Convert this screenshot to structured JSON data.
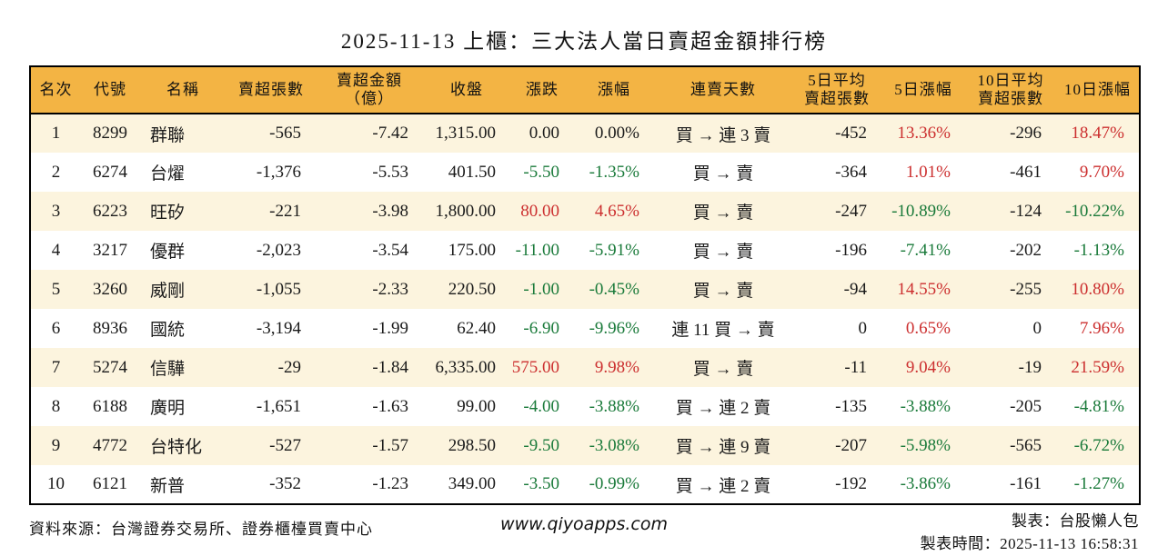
{
  "title": "2025-11-13 上櫃：三大法人當日賣超金額排行榜",
  "colors": {
    "up_red": "#CC2F2F",
    "down_green": "#1A7A3A",
    "flat_black": "#1A1A1A",
    "header_bg": "#F3B444",
    "alt_row_bg": "#FCF4DE",
    "border": "#000000"
  },
  "chart_data": {
    "type": "table",
    "title": "2025-11-13 上櫃：三大法人當日賣超金額排行榜",
    "columns": [
      {
        "key": "rank",
        "label": "名次",
        "align": "center",
        "colored": false
      },
      {
        "key": "code",
        "label": "代號",
        "align": "center",
        "colored": false
      },
      {
        "key": "name",
        "label": "名稱",
        "align": "left",
        "colored": false
      },
      {
        "key": "shares",
        "label": "賣超張數",
        "align": "right",
        "colored": false
      },
      {
        "key": "amount",
        "label": "賣超金額\n（億）",
        "align": "right",
        "colored": false
      },
      {
        "key": "close",
        "label": "收盤",
        "align": "right",
        "colored": false
      },
      {
        "key": "change",
        "label": "漲跌",
        "align": "right",
        "colored": true
      },
      {
        "key": "changePct",
        "label": "漲幅",
        "align": "right",
        "colored": true
      },
      {
        "key": "streak",
        "label": "連賣天數",
        "align": "center",
        "colored": false
      },
      {
        "key": "avg5",
        "label": "5日平均\n賣超張數",
        "align": "right",
        "colored": false
      },
      {
        "key": "pct5",
        "label": "5日漲幅",
        "align": "right",
        "colored": true
      },
      {
        "key": "avg10",
        "label": "10日平均\n賣超張數",
        "align": "right",
        "colored": false
      },
      {
        "key": "pct10",
        "label": "10日漲幅",
        "align": "right",
        "colored": true
      }
    ],
    "rows": [
      {
        "rank": "1",
        "code": "8299",
        "name": "群聯",
        "shares": "-565",
        "amount": "-7.42",
        "close": "1,315.00",
        "change": {
          "t": "0.00",
          "c": "flat"
        },
        "changePct": {
          "t": "0.00%",
          "c": "flat"
        },
        "streak": "買 → 連 3 賣",
        "avg5": "-452",
        "pct5": {
          "t": "13.36%",
          "c": "up"
        },
        "avg10": "-296",
        "pct10": {
          "t": "18.47%",
          "c": "up"
        }
      },
      {
        "rank": "2",
        "code": "6274",
        "name": "台燿",
        "shares": "-1,376",
        "amount": "-5.53",
        "close": "401.50",
        "change": {
          "t": "-5.50",
          "c": "down"
        },
        "changePct": {
          "t": "-1.35%",
          "c": "down"
        },
        "streak": "買 → 賣",
        "avg5": "-364",
        "pct5": {
          "t": "1.01%",
          "c": "up"
        },
        "avg10": "-461",
        "pct10": {
          "t": "9.70%",
          "c": "up"
        }
      },
      {
        "rank": "3",
        "code": "6223",
        "name": "旺矽",
        "shares": "-221",
        "amount": "-3.98",
        "close": "1,800.00",
        "change": {
          "t": "80.00",
          "c": "up"
        },
        "changePct": {
          "t": "4.65%",
          "c": "up"
        },
        "streak": "買 → 賣",
        "avg5": "-247",
        "pct5": {
          "t": "-10.89%",
          "c": "down"
        },
        "avg10": "-124",
        "pct10": {
          "t": "-10.22%",
          "c": "down"
        }
      },
      {
        "rank": "4",
        "code": "3217",
        "name": "優群",
        "shares": "-2,023",
        "amount": "-3.54",
        "close": "175.00",
        "change": {
          "t": "-11.00",
          "c": "down"
        },
        "changePct": {
          "t": "-5.91%",
          "c": "down"
        },
        "streak": "買 → 賣",
        "avg5": "-196",
        "pct5": {
          "t": "-7.41%",
          "c": "down"
        },
        "avg10": "-202",
        "pct10": {
          "t": "-1.13%",
          "c": "down"
        }
      },
      {
        "rank": "5",
        "code": "3260",
        "name": "威剛",
        "shares": "-1,055",
        "amount": "-2.33",
        "close": "220.50",
        "change": {
          "t": "-1.00",
          "c": "down"
        },
        "changePct": {
          "t": "-0.45%",
          "c": "down"
        },
        "streak": "買 → 賣",
        "avg5": "-94",
        "pct5": {
          "t": "14.55%",
          "c": "up"
        },
        "avg10": "-255",
        "pct10": {
          "t": "10.80%",
          "c": "up"
        }
      },
      {
        "rank": "6",
        "code": "8936",
        "name": "國統",
        "shares": "-3,194",
        "amount": "-1.99",
        "close": "62.40",
        "change": {
          "t": "-6.90",
          "c": "down"
        },
        "changePct": {
          "t": "-9.96%",
          "c": "down"
        },
        "streak": "連 11 買 → 賣",
        "avg5": "0",
        "pct5": {
          "t": "0.65%",
          "c": "up"
        },
        "avg10": "0",
        "pct10": {
          "t": "7.96%",
          "c": "up"
        }
      },
      {
        "rank": "7",
        "code": "5274",
        "name": "信驊",
        "shares": "-29",
        "amount": "-1.84",
        "close": "6,335.00",
        "change": {
          "t": "575.00",
          "c": "up"
        },
        "changePct": {
          "t": "9.98%",
          "c": "up"
        },
        "streak": "買 → 賣",
        "avg5": "-11",
        "pct5": {
          "t": "9.04%",
          "c": "up"
        },
        "avg10": "-19",
        "pct10": {
          "t": "21.59%",
          "c": "up"
        }
      },
      {
        "rank": "8",
        "code": "6188",
        "name": "廣明",
        "shares": "-1,651",
        "amount": "-1.63",
        "close": "99.00",
        "change": {
          "t": "-4.00",
          "c": "down"
        },
        "changePct": {
          "t": "-3.88%",
          "c": "down"
        },
        "streak": "買 → 連 2 賣",
        "avg5": "-135",
        "pct5": {
          "t": "-3.88%",
          "c": "down"
        },
        "avg10": "-205",
        "pct10": {
          "t": "-4.81%",
          "c": "down"
        }
      },
      {
        "rank": "9",
        "code": "4772",
        "name": "台特化",
        "shares": "-527",
        "amount": "-1.57",
        "close": "298.50",
        "change": {
          "t": "-9.50",
          "c": "down"
        },
        "changePct": {
          "t": "-3.08%",
          "c": "down"
        },
        "streak": "買 → 連 9 賣",
        "avg5": "-207",
        "pct5": {
          "t": "-5.98%",
          "c": "down"
        },
        "avg10": "-565",
        "pct10": {
          "t": "-6.72%",
          "c": "down"
        }
      },
      {
        "rank": "10",
        "code": "6121",
        "name": "新普",
        "shares": "-352",
        "amount": "-1.23",
        "close": "349.00",
        "change": {
          "t": "-3.50",
          "c": "down"
        },
        "changePct": {
          "t": "-0.99%",
          "c": "down"
        },
        "streak": "買 → 連 2 賣",
        "avg5": "-192",
        "pct5": {
          "t": "-3.86%",
          "c": "down"
        },
        "avg10": "-161",
        "pct10": {
          "t": "-1.27%",
          "c": "down"
        }
      }
    ]
  },
  "footer": {
    "source": "資料來源：台灣證券交易所、證券櫃檯買賣中心",
    "website": "www.qiyoapps.com",
    "author": "製表：台股懶人包",
    "generated": "製表時間：2025-11-13 16:58:31"
  }
}
